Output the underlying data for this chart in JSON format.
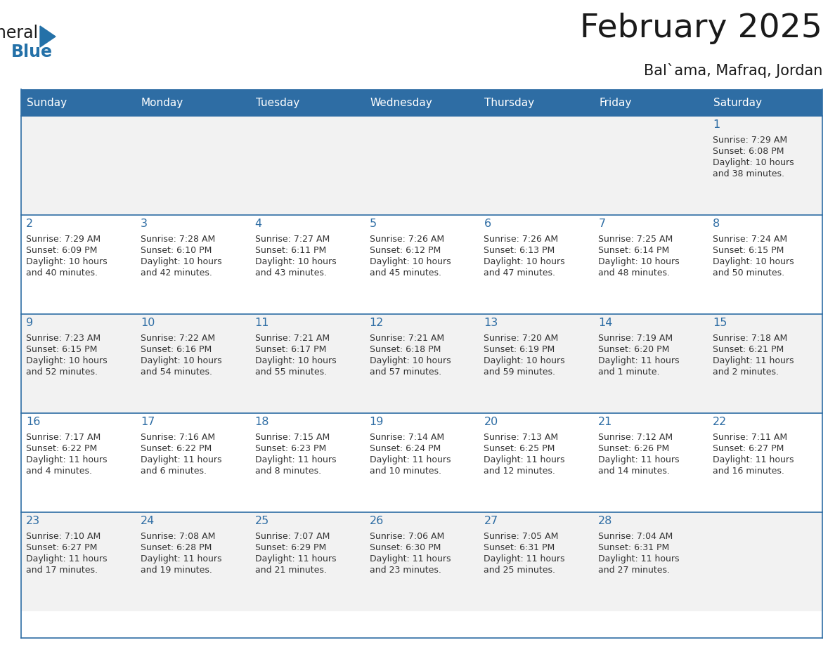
{
  "title": "February 2025",
  "subtitle": "Bal`ama, Mafraq, Jordan",
  "days_of_week": [
    "Sunday",
    "Monday",
    "Tuesday",
    "Wednesday",
    "Thursday",
    "Friday",
    "Saturday"
  ],
  "header_bg": "#2E6DA4",
  "header_text": "#FFFFFF",
  "cell_bg_odd": "#F2F2F2",
  "cell_bg_even": "#FFFFFF",
  "cell_text": "#333333",
  "day_num_color": "#2E6DA4",
  "grid_line_color": "#2E6DA4",
  "title_color": "#1a1a1a",
  "subtitle_color": "#1a1a1a",
  "calendar_data": [
    [
      null,
      null,
      null,
      null,
      null,
      null,
      {
        "day": 1,
        "sunrise": "7:29 AM",
        "sunset": "6:08 PM",
        "daylight_line1": "10 hours",
        "daylight_line2": "and 38 minutes."
      }
    ],
    [
      {
        "day": 2,
        "sunrise": "7:29 AM",
        "sunset": "6:09 PM",
        "daylight_line1": "10 hours",
        "daylight_line2": "and 40 minutes."
      },
      {
        "day": 3,
        "sunrise": "7:28 AM",
        "sunset": "6:10 PM",
        "daylight_line1": "10 hours",
        "daylight_line2": "and 42 minutes."
      },
      {
        "day": 4,
        "sunrise": "7:27 AM",
        "sunset": "6:11 PM",
        "daylight_line1": "10 hours",
        "daylight_line2": "and 43 minutes."
      },
      {
        "day": 5,
        "sunrise": "7:26 AM",
        "sunset": "6:12 PM",
        "daylight_line1": "10 hours",
        "daylight_line2": "and 45 minutes."
      },
      {
        "day": 6,
        "sunrise": "7:26 AM",
        "sunset": "6:13 PM",
        "daylight_line1": "10 hours",
        "daylight_line2": "and 47 minutes."
      },
      {
        "day": 7,
        "sunrise": "7:25 AM",
        "sunset": "6:14 PM",
        "daylight_line1": "10 hours",
        "daylight_line2": "and 48 minutes."
      },
      {
        "day": 8,
        "sunrise": "7:24 AM",
        "sunset": "6:15 PM",
        "daylight_line1": "10 hours",
        "daylight_line2": "and 50 minutes."
      }
    ],
    [
      {
        "day": 9,
        "sunrise": "7:23 AM",
        "sunset": "6:15 PM",
        "daylight_line1": "10 hours",
        "daylight_line2": "and 52 minutes."
      },
      {
        "day": 10,
        "sunrise": "7:22 AM",
        "sunset": "6:16 PM",
        "daylight_line1": "10 hours",
        "daylight_line2": "and 54 minutes."
      },
      {
        "day": 11,
        "sunrise": "7:21 AM",
        "sunset": "6:17 PM",
        "daylight_line1": "10 hours",
        "daylight_line2": "and 55 minutes."
      },
      {
        "day": 12,
        "sunrise": "7:21 AM",
        "sunset": "6:18 PM",
        "daylight_line1": "10 hours",
        "daylight_line2": "and 57 minutes."
      },
      {
        "day": 13,
        "sunrise": "7:20 AM",
        "sunset": "6:19 PM",
        "daylight_line1": "10 hours",
        "daylight_line2": "and 59 minutes."
      },
      {
        "day": 14,
        "sunrise": "7:19 AM",
        "sunset": "6:20 PM",
        "daylight_line1": "11 hours",
        "daylight_line2": "and 1 minute."
      },
      {
        "day": 15,
        "sunrise": "7:18 AM",
        "sunset": "6:21 PM",
        "daylight_line1": "11 hours",
        "daylight_line2": "and 2 minutes."
      }
    ],
    [
      {
        "day": 16,
        "sunrise": "7:17 AM",
        "sunset": "6:22 PM",
        "daylight_line1": "11 hours",
        "daylight_line2": "and 4 minutes."
      },
      {
        "day": 17,
        "sunrise": "7:16 AM",
        "sunset": "6:22 PM",
        "daylight_line1": "11 hours",
        "daylight_line2": "and 6 minutes."
      },
      {
        "day": 18,
        "sunrise": "7:15 AM",
        "sunset": "6:23 PM",
        "daylight_line1": "11 hours",
        "daylight_line2": "and 8 minutes."
      },
      {
        "day": 19,
        "sunrise": "7:14 AM",
        "sunset": "6:24 PM",
        "daylight_line1": "11 hours",
        "daylight_line2": "and 10 minutes."
      },
      {
        "day": 20,
        "sunrise": "7:13 AM",
        "sunset": "6:25 PM",
        "daylight_line1": "11 hours",
        "daylight_line2": "and 12 minutes."
      },
      {
        "day": 21,
        "sunrise": "7:12 AM",
        "sunset": "6:26 PM",
        "daylight_line1": "11 hours",
        "daylight_line2": "and 14 minutes."
      },
      {
        "day": 22,
        "sunrise": "7:11 AM",
        "sunset": "6:27 PM",
        "daylight_line1": "11 hours",
        "daylight_line2": "and 16 minutes."
      }
    ],
    [
      {
        "day": 23,
        "sunrise": "7:10 AM",
        "sunset": "6:27 PM",
        "daylight_line1": "11 hours",
        "daylight_line2": "and 17 minutes."
      },
      {
        "day": 24,
        "sunrise": "7:08 AM",
        "sunset": "6:28 PM",
        "daylight_line1": "11 hours",
        "daylight_line2": "and 19 minutes."
      },
      {
        "day": 25,
        "sunrise": "7:07 AM",
        "sunset": "6:29 PM",
        "daylight_line1": "11 hours",
        "daylight_line2": "and 21 minutes."
      },
      {
        "day": 26,
        "sunrise": "7:06 AM",
        "sunset": "6:30 PM",
        "daylight_line1": "11 hours",
        "daylight_line2": "and 23 minutes."
      },
      {
        "day": 27,
        "sunrise": "7:05 AM",
        "sunset": "6:31 PM",
        "daylight_line1": "11 hours",
        "daylight_line2": "and 25 minutes."
      },
      {
        "day": 28,
        "sunrise": "7:04 AM",
        "sunset": "6:31 PM",
        "daylight_line1": "11 hours",
        "daylight_line2": "and 27 minutes."
      },
      null
    ]
  ],
  "logo_general_color": "#1a1a1a",
  "logo_blue_color": "#2471A8"
}
